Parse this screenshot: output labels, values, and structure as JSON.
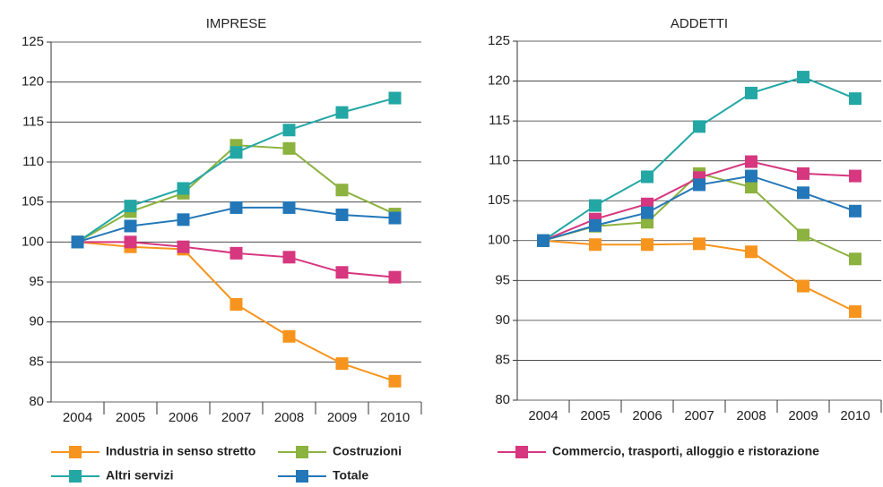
{
  "chart_data": [
    {
      "type": "line",
      "title": "IMPRESE",
      "categories": [
        "2004",
        "2005",
        "2006",
        "2007",
        "2008",
        "2009",
        "2010"
      ],
      "ylim": [
        80,
        125
      ],
      "yticks": [
        80,
        85,
        90,
        95,
        100,
        105,
        110,
        115,
        120,
        125
      ],
      "grid": true,
      "series": [
        {
          "name": "Industria in senso stretto",
          "color": "#f7941d",
          "values": [
            100,
            99.4,
            99.1,
            92.2,
            88.2,
            84.8,
            82.6
          ]
        },
        {
          "name": "Costruzioni",
          "color": "#8cb23f",
          "values": [
            100,
            103.8,
            106.1,
            112.1,
            111.7,
            106.5,
            103.5
          ]
        },
        {
          "name": "Commercio, trasporti, alloggio e ristorazione",
          "color": "#d6377f",
          "values": [
            100,
            100,
            99.4,
            98.6,
            98.1,
            96.2,
            95.6
          ]
        },
        {
          "name": "Altri servizi",
          "color": "#23a7a5",
          "values": [
            100,
            104.5,
            106.7,
            111.2,
            114,
            116.2,
            118
          ]
        },
        {
          "name": "Totale",
          "color": "#2377b8",
          "values": [
            100,
            102,
            102.8,
            104.3,
            104.3,
            103.4,
            103
          ]
        }
      ]
    },
    {
      "type": "line",
      "title": "ADDETTI",
      "categories": [
        "2004",
        "2005",
        "2006",
        "2007",
        "2008",
        "2009",
        "2010"
      ],
      "ylim": [
        80,
        125
      ],
      "yticks": [
        80,
        85,
        90,
        95,
        100,
        105,
        110,
        115,
        120,
        125
      ],
      "grid": true,
      "series": [
        {
          "color": "#f7941d",
          "values": [
            100,
            99.5,
            99.5,
            99.6,
            98.6,
            94.3,
            91.1
          ]
        },
        {
          "color": "#8cb23f",
          "values": [
            100,
            101.8,
            102.3,
            108.4,
            106.7,
            100.7,
            97.7
          ]
        },
        {
          "color": "#d6377f",
          "values": [
            100,
            102.7,
            104.6,
            107.9,
            109.9,
            108.4,
            108.1
          ]
        },
        {
          "color": "#23a7a5",
          "values": [
            100,
            104.4,
            108,
            114.3,
            118.5,
            120.5,
            117.8
          ]
        },
        {
          "color": "#2377b8",
          "values": [
            100,
            101.9,
            103.5,
            107,
            108.1,
            106,
            103.7
          ]
        }
      ]
    }
  ]
}
